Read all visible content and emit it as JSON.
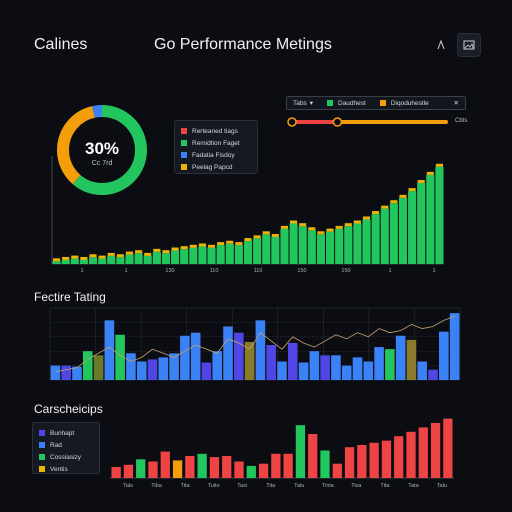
{
  "header": {
    "app_title": "Calines",
    "page_title": "Go Performance Metings",
    "icon1": "chart-icon",
    "icon2": "image-icon"
  },
  "donut": {
    "percent_label": "30%",
    "sub_label": "Cc 7rd",
    "colors": [
      "#22c55e",
      "#f59e0b",
      "#3b82f6"
    ]
  },
  "legend_top": {
    "items": [
      {
        "label": "Rerteaned tiags",
        "color": "#ef4444"
      },
      {
        "label": "Remidtion Faget",
        "color": "#22c55e"
      },
      {
        "label": "Fadatia Fisdoy",
        "color": "#3b82f6"
      },
      {
        "label": "Peelag Papcd",
        "color": "#eab308"
      }
    ]
  },
  "filter": {
    "label1": "Tabs",
    "label2": "Daudhest",
    "label3": "Diqoduhestle",
    "slider_value": 0.3,
    "slider_label": "Cbts",
    "colors": {
      "track_left": "#ef4444",
      "track_right": "#f59e0b"
    }
  },
  "sections": {
    "middle_title": "Fectire Tating",
    "bottom_title": "Carscheicips"
  },
  "legend_bottom": {
    "items": [
      {
        "label": "Bunhapt",
        "color": "#4f46e5"
      },
      {
        "label": "Rad",
        "color": "#3b82f6"
      },
      {
        "label": "Cossiasizy",
        "color": "#22c55e"
      },
      {
        "label": "Ventis",
        "color": "#eab308"
      }
    ]
  },
  "chart_data": [
    {
      "type": "bar",
      "name_ref": "top-growth-bars",
      "values": [
        2,
        3,
        4,
        3,
        5,
        4,
        6,
        5,
        7,
        8,
        6,
        9,
        8,
        10,
        11,
        12,
        13,
        12,
        14,
        15,
        14,
        17,
        19,
        22,
        20,
        26,
        30,
        28,
        25,
        22,
        24,
        26,
        28,
        30,
        33,
        37,
        41,
        45,
        49,
        54,
        60,
        66,
        72
      ],
      "ylim": [
        0,
        80
      ],
      "x_ticks": [
        "1",
        "1",
        "130",
        "110",
        "110",
        "150",
        "150",
        "1",
        "1"
      ],
      "colors": {
        "bar": "#22c55e",
        "label": "#eab308"
      }
    },
    {
      "type": "bar",
      "name_ref": "middle-mixed-bars",
      "values": [
        14,
        14,
        13,
        28,
        24,
        58,
        44,
        26,
        18,
        20,
        22,
        26,
        43,
        46,
        17,
        28,
        52,
        46,
        37,
        58,
        34,
        18,
        36,
        17,
        28,
        24,
        24,
        14,
        22,
        18,
        32,
        30,
        43,
        39,
        18,
        10,
        47,
        65
      ],
      "colors": [
        "#3b82f6",
        "#4f46e5",
        "#3b82f6",
        "#22c55e",
        "#6b7a2a",
        "#3b82f6",
        "#22c55e",
        "#3b82f6",
        "#3b82f6",
        "#4f46e5",
        "#3b82f6",
        "#3b82f6",
        "#3b82f6",
        "#3b82f6",
        "#4f46e5",
        "#3b82f6",
        "#3b82f6",
        "#4f46e5",
        "#8b7a2a",
        "#3b82f6",
        "#4f46e5",
        "#3b82f6",
        "#4f46e5",
        "#3b82f6",
        "#3b82f6",
        "#4f46e5",
        "#3b82f6",
        "#3b82f6",
        "#3b82f6",
        "#3b82f6",
        "#3b82f6",
        "#22c55e",
        "#3b82f6",
        "#8b7a2a",
        "#3b82f6",
        "#4f46e5",
        "#3b82f6",
        "#3b82f6"
      ],
      "line": [
        8,
        10,
        12,
        20,
        26,
        32,
        24,
        18,
        22,
        30,
        26,
        22,
        28,
        34,
        30,
        26,
        40,
        36,
        30,
        46,
        38,
        30,
        42,
        36,
        32,
        38,
        44,
        40,
        46,
        42,
        50,
        46,
        48,
        54,
        50,
        52,
        58,
        62
      ],
      "ylim": [
        0,
        70
      ]
    },
    {
      "type": "bar",
      "name_ref": "bottom-red-bars",
      "values": [
        10,
        12,
        17,
        15,
        24,
        16,
        20,
        22,
        19,
        20,
        15,
        11,
        13,
        22,
        22,
        48,
        40,
        25,
        13,
        28,
        30,
        32,
        34,
        38,
        42,
        46,
        50,
        54
      ],
      "colors": [
        "#ef4444",
        "#ef4444",
        "#22c55e",
        "#ef4444",
        "#ef4444",
        "#f59e0b",
        "#ef4444",
        "#22c55e",
        "#ef4444",
        "#ef4444",
        "#ef4444",
        "#22c55e",
        "#ef4444",
        "#ef4444",
        "#ef4444",
        "#22c55e",
        "#ef4444",
        "#22c55e",
        "#ef4444",
        "#ef4444",
        "#ef4444",
        "#ef4444",
        "#ef4444",
        "#ef4444",
        "#ef4444",
        "#ef4444",
        "#ef4444",
        "#ef4444"
      ],
      "x_ticks": [
        "Tals",
        "Tiba",
        "Tita",
        "Tuito",
        "Tasi",
        "Tita",
        "Tatu",
        "Tinia",
        "Tisa",
        "Tita",
        "Tata",
        "Tatu"
      ],
      "ylim": [
        0,
        60
      ]
    }
  ]
}
